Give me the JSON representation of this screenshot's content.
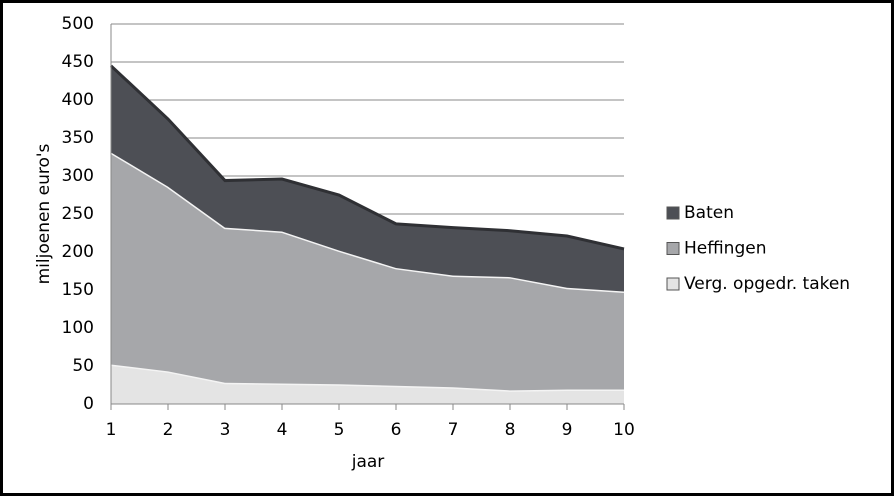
{
  "chart_data": {
    "type": "area",
    "stacked": true,
    "x_label": "jaar",
    "y_label": "miljoenen euro's",
    "x": [
      1,
      2,
      3,
      4,
      5,
      6,
      7,
      8,
      9,
      10
    ],
    "xlim": [
      1,
      10
    ],
    "xticks": [
      1,
      2,
      3,
      4,
      5,
      6,
      7,
      8,
      9,
      10
    ],
    "ylim": [
      0,
      500
    ],
    "yticks": [
      0,
      50,
      100,
      150,
      200,
      250,
      300,
      350,
      400,
      450,
      500
    ],
    "grid": true,
    "legend": "right",
    "series": [
      {
        "name": "Verg. opgedr. taken",
        "color": "#e4e4e4",
        "values": [
          52,
          43,
          28,
          27,
          26,
          24,
          22,
          18,
          19,
          19
        ]
      },
      {
        "name": "Heffingen",
        "color": "#a6a7aa",
        "values": [
          279,
          243,
          204,
          200,
          176,
          155,
          147,
          149,
          134,
          129
        ]
      },
      {
        "name": "Baten",
        "color": "#4d4f55",
        "values": [
          114,
          89,
          62,
          69,
          73,
          58,
          63,
          61,
          68,
          56
        ]
      }
    ]
  }
}
